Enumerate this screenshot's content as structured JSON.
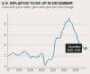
{
  "chart_data": {
    "type": "line",
    "title": "U.S. INFLATION TICKS UP IN DECEMBER",
    "subtitle": "Consumer price index, year-over-year per cent change",
    "annotation": [
      "December",
      "2023: 3.4%"
    ],
    "categories": [
      "'17",
      null,
      null,
      null,
      null,
      null,
      null,
      null,
      null,
      null,
      null,
      null,
      "2018",
      null,
      null,
      null,
      null,
      null,
      null,
      null,
      null,
      null,
      null,
      null,
      "2019",
      null,
      null,
      null,
      null,
      null,
      null,
      null,
      null,
      null,
      null,
      null,
      "2020",
      null,
      null,
      null,
      null,
      null,
      null,
      null,
      null,
      null,
      null,
      null,
      "2021",
      null,
      null,
      null,
      null,
      null,
      null,
      null,
      null,
      null,
      null,
      null,
      "2022",
      null,
      null,
      null,
      null,
      null,
      null,
      null,
      null,
      null,
      null,
      null,
      "2023",
      null,
      null,
      null,
      null,
      null,
      null,
      null,
      null,
      null,
      null,
      null
    ],
    "values": [
      1.9,
      2.0,
      2.1,
      2.2,
      2.3,
      2.4,
      2.5,
      2.4,
      2.3,
      2.2,
      2.1,
      2.1,
      2.1,
      2.2,
      2.4,
      2.5,
      2.5,
      2.9,
      2.9,
      2.7,
      2.3,
      2.5,
      2.2,
      1.9,
      1.6,
      1.5,
      1.9,
      1.8,
      1.8,
      1.6,
      1.8,
      1.8,
      1.7,
      1.7,
      2.1,
      2.3,
      2.5,
      2.3,
      1.5,
      0.3,
      0.1,
      0.6,
      1.0,
      1.2,
      1.4,
      1.2,
      1.2,
      1.4,
      1.7,
      2.6,
      4.2,
      5.0,
      5.4,
      5.4,
      5.3,
      5.3,
      5.4,
      6.2,
      6.8,
      7.0,
      7.5,
      7.9,
      8.5,
      8.3,
      8.6,
      9.1,
      8.5,
      8.3,
      8.2,
      7.7,
      7.1,
      6.5,
      6.4,
      6.0,
      5.0,
      4.9,
      4.0,
      3.0,
      3.2,
      3.7,
      3.7,
      3.2,
      3.1,
      3.4
    ],
    "color": "#4a90c4",
    "ylim": [
      -0.3,
      10.0
    ],
    "yticks": [
      0,
      2,
      4,
      6,
      8
    ],
    "grid": true
  }
}
